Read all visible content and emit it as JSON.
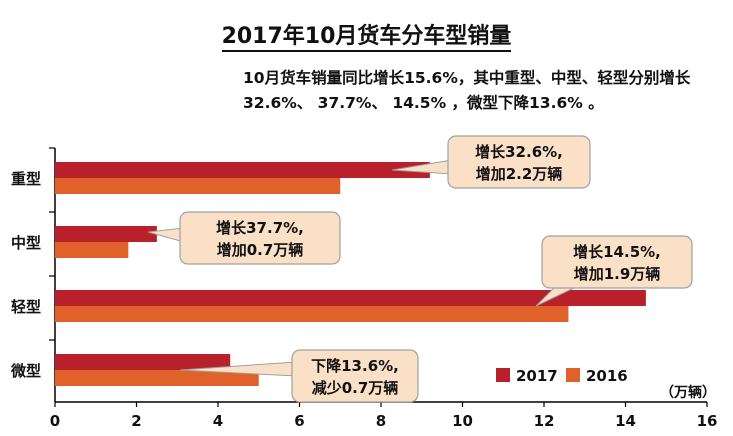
{
  "chart_data": {
    "type": "bar",
    "orientation": "horizontal",
    "title": "2017年10月货车分车型销量",
    "subtitle": "10月货车销量同比增长15.6%，其中重型、中型、轻型分别增长32.6%、 37.7%、 14.5% ，微型下降13.6% 。",
    "unit_label": "（万辆）",
    "categories": [
      "重型",
      "中型",
      "轻型",
      "微型"
    ],
    "series": [
      {
        "name": "2017",
        "color": "#b8202a",
        "values": [
          9.2,
          2.5,
          14.5,
          4.3
        ]
      },
      {
        "name": "2016",
        "color": "#e0622a",
        "values": [
          7.0,
          1.8,
          12.6,
          5.0
        ]
      }
    ],
    "xlim": [
      0,
      16
    ],
    "xticks": [
      0,
      2,
      4,
      6,
      8,
      10,
      12,
      14,
      16
    ],
    "legend_position": "bottom-right",
    "callout_fill": "#fbe0c8",
    "callout_stroke": "#a0a0a0",
    "annotations": [
      {
        "category": "重型",
        "lines": [
          "增长32.6%,",
          "增加2.2万辆"
        ]
      },
      {
        "category": "中型",
        "lines": [
          "增长37.7%,",
          "增加0.7万辆"
        ]
      },
      {
        "category": "轻型",
        "lines": [
          "增长14.5%,",
          "增加1.9万辆"
        ]
      },
      {
        "category": "微型",
        "lines": [
          "下降13.6%,",
          "减少0.7万辆"
        ]
      }
    ]
  }
}
